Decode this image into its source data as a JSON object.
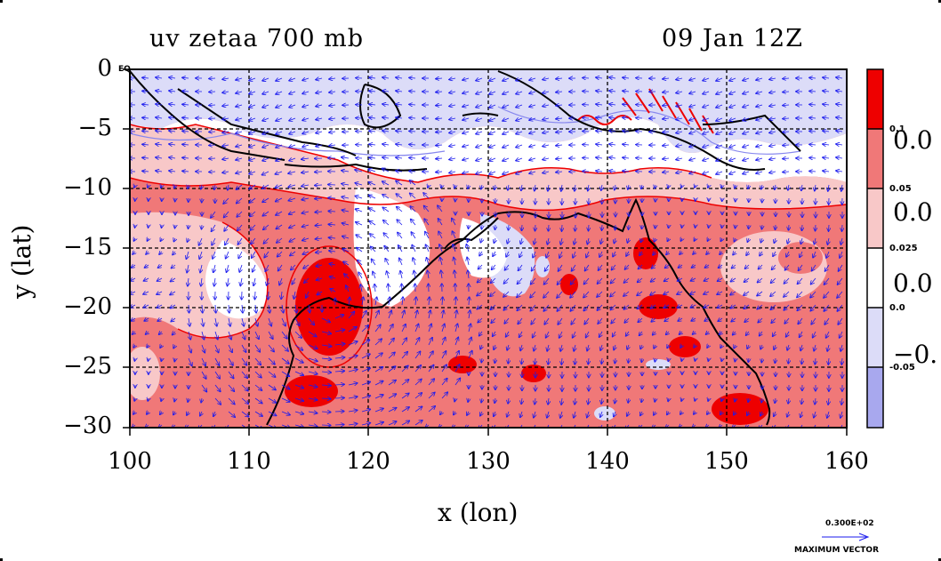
{
  "title_left": "uv zetaa 700 mb",
  "title_right": "09 Jan 12Z",
  "axis": {
    "xlabel": "x (lon)",
    "ylabel": "y (lat)",
    "x_ticks": [
      "100",
      "110",
      "120",
      "130",
      "140",
      "150",
      "160"
    ],
    "y_ticks": [
      "0",
      "−5",
      "−10",
      "−15",
      "−20",
      "−25",
      "−30"
    ],
    "eq_label": "EQ"
  },
  "colorbar": {
    "levels": [
      "0.1",
      "0.05",
      "0.025",
      "0.0",
      "-0.05"
    ],
    "big_labels": [
      "0.0",
      "0.0",
      "0.0",
      "−0."
    ],
    "colors": [
      "#ee0000",
      "#f07878",
      "#f8c8c8",
      "#ffffff",
      "#dcdcf8",
      "#a8a8ee"
    ]
  },
  "vector_key": {
    "magnitude": "0.300E+02",
    "label": "MAXIMUM VECTOR"
  },
  "colors": {
    "vector": "#1a1aee",
    "contour_pos": "#ee0000",
    "contour_neg": "#8888ee",
    "coast": "#000000"
  },
  "chart_data": {
    "type": "heatmap",
    "title": "uv zetaa 700 mb",
    "subtitle": "09 Jan 12Z",
    "xlabel": "x (lon)",
    "ylabel": "y (lat)",
    "xlim": [
      100,
      160
    ],
    "ylim": [
      -30,
      0
    ],
    "grid": true,
    "legend": "colorbar-right"
  }
}
